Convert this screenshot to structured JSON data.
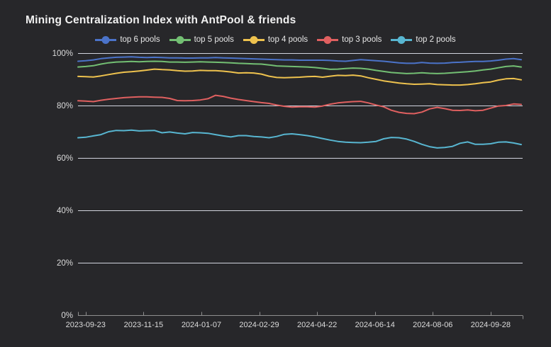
{
  "chart_data": {
    "type": "line",
    "title": "Mining Centralization Index with AntPool & friends",
    "ylabel": "",
    "xlabel": "",
    "ylim": [
      0,
      100
    ],
    "yticks": [
      0,
      20,
      40,
      60,
      80,
      100
    ],
    "ytick_suffix": "%",
    "grid": true,
    "legend_position": "top-center",
    "xtick_labels": [
      "2023-09-23",
      "2023-11-15",
      "2024-01-07",
      "2024-02-29",
      "2024-04-22",
      "2024-06-14",
      "2024-08-06",
      "2024-09-28"
    ],
    "x": [
      "2023-09-16",
      "2023-09-23",
      "2023-09-30",
      "2023-10-07",
      "2023-10-14",
      "2023-10-21",
      "2023-10-28",
      "2023-11-04",
      "2023-11-11",
      "2023-11-18",
      "2023-11-25",
      "2023-12-02",
      "2023-12-09",
      "2023-12-16",
      "2023-12-23",
      "2023-12-30",
      "2024-01-06",
      "2024-01-13",
      "2024-01-20",
      "2024-01-27",
      "2024-02-03",
      "2024-02-10",
      "2024-02-17",
      "2024-02-24",
      "2024-03-02",
      "2024-03-09",
      "2024-03-16",
      "2024-03-23",
      "2024-03-30",
      "2024-04-06",
      "2024-04-13",
      "2024-04-20",
      "2024-04-27",
      "2024-05-04",
      "2024-05-11",
      "2024-05-18",
      "2024-05-25",
      "2024-06-01",
      "2024-06-08",
      "2024-06-15",
      "2024-06-22",
      "2024-06-29",
      "2024-07-06",
      "2024-07-13",
      "2024-07-20",
      "2024-07-27",
      "2024-08-03",
      "2024-08-10",
      "2024-08-17",
      "2024-08-24",
      "2024-08-31",
      "2024-09-07",
      "2024-09-14",
      "2024-09-21",
      "2024-09-28",
      "2024-10-05",
      "2024-10-12",
      "2024-10-19",
      "2024-10-26"
    ],
    "series": [
      {
        "name": "top 6 pools",
        "color": "#4b73c9",
        "values": [
          96.9,
          97.1,
          97.4,
          97.9,
          98.2,
          98.4,
          98.5,
          98.6,
          98.4,
          98.3,
          98.4,
          98.3,
          98.2,
          98.2,
          98.1,
          98.1,
          98.2,
          98.2,
          98.3,
          98.2,
          98.1,
          98.0,
          97.9,
          97.8,
          97.7,
          97.6,
          97.5,
          97.4,
          97.4,
          97.3,
          97.3,
          97.3,
          97.3,
          97.2,
          97.0,
          96.9,
          97.2,
          97.5,
          97.3,
          97.1,
          96.9,
          96.6,
          96.3,
          96.1,
          96.1,
          96.4,
          96.2,
          96.1,
          96.2,
          96.4,
          96.5,
          96.7,
          96.8,
          96.8,
          97.0,
          97.3,
          97.7,
          97.9,
          97.5
        ]
      },
      {
        "name": "top 5 pools",
        "color": "#73bf73",
        "values": [
          94.7,
          94.9,
          95.2,
          95.8,
          96.3,
          96.6,
          96.7,
          96.8,
          96.7,
          96.8,
          96.9,
          96.8,
          96.6,
          96.6,
          96.5,
          96.6,
          96.7,
          96.6,
          96.5,
          96.4,
          96.3,
          96.1,
          96.0,
          95.9,
          95.8,
          95.5,
          95.1,
          95.0,
          94.9,
          94.8,
          94.7,
          94.5,
          94.2,
          93.8,
          93.9,
          94.1,
          94.3,
          94.2,
          93.9,
          93.4,
          93.0,
          92.6,
          92.4,
          92.2,
          92.3,
          92.5,
          92.3,
          92.2,
          92.3,
          92.5,
          92.7,
          92.9,
          93.2,
          93.6,
          93.9,
          94.4,
          94.9,
          95.1,
          94.7
        ]
      },
      {
        "name": "top 4 pools",
        "color": "#eec24e",
        "values": [
          91.1,
          91.0,
          90.9,
          91.3,
          91.8,
          92.3,
          92.7,
          92.9,
          93.2,
          93.5,
          93.9,
          93.7,
          93.6,
          93.3,
          93.1,
          93.2,
          93.4,
          93.3,
          93.3,
          93.1,
          92.8,
          92.4,
          92.5,
          92.4,
          92.0,
          91.2,
          90.7,
          90.6,
          90.7,
          90.8,
          91.0,
          91.1,
          90.8,
          91.2,
          91.5,
          91.4,
          91.6,
          91.3,
          90.6,
          90.0,
          89.4,
          89.0,
          88.6,
          88.3,
          88.1,
          88.2,
          88.3,
          88.0,
          87.9,
          87.8,
          87.8,
          88.0,
          88.3,
          88.7,
          89.0,
          89.7,
          90.2,
          90.3,
          89.8
        ]
      },
      {
        "name": "top 3 pools",
        "color": "#e06060",
        "values": [
          81.8,
          81.7,
          81.5,
          82.0,
          82.4,
          82.7,
          83.0,
          83.2,
          83.3,
          83.3,
          83.2,
          83.1,
          82.7,
          81.9,
          81.8,
          81.9,
          82.1,
          82.6,
          83.9,
          83.5,
          82.8,
          82.3,
          81.9,
          81.5,
          81.1,
          80.8,
          80.2,
          79.7,
          79.4,
          79.5,
          79.5,
          79.4,
          79.8,
          80.5,
          81.0,
          81.3,
          81.5,
          81.6,
          81.0,
          80.2,
          79.5,
          78.2,
          77.4,
          77.0,
          76.9,
          77.5,
          78.7,
          79.3,
          78.8,
          78.2,
          78.1,
          78.3,
          78.0,
          78.2,
          79.0,
          79.8,
          80.0,
          80.6,
          80.4
        ]
      },
      {
        "name": "top 2 pools",
        "color": "#58b6d1",
        "values": [
          67.7,
          67.9,
          68.4,
          68.9,
          70.0,
          70.5,
          70.4,
          70.6,
          70.3,
          70.4,
          70.5,
          69.6,
          69.9,
          69.5,
          69.2,
          69.7,
          69.6,
          69.4,
          68.9,
          68.4,
          68.0,
          68.5,
          68.5,
          68.2,
          68.0,
          67.7,
          68.2,
          69.0,
          69.2,
          68.9,
          68.5,
          68.0,
          67.4,
          66.8,
          66.3,
          66.0,
          65.9,
          65.8,
          66.0,
          66.3,
          67.3,
          67.8,
          67.7,
          67.2,
          66.3,
          65.2,
          64.3,
          63.8,
          64.0,
          64.4,
          65.6,
          66.1,
          65.2,
          65.2,
          65.4,
          66.0,
          66.1,
          65.7,
          65.1
        ]
      }
    ],
    "colors": {
      "background": "#27272a",
      "title_text": "#f1f1f1",
      "axis_text": "#dcdcdc",
      "legend_text": "#e7e7e7",
      "gridline": "#d2d4de",
      "axis_line": "#8f8f8f"
    }
  }
}
